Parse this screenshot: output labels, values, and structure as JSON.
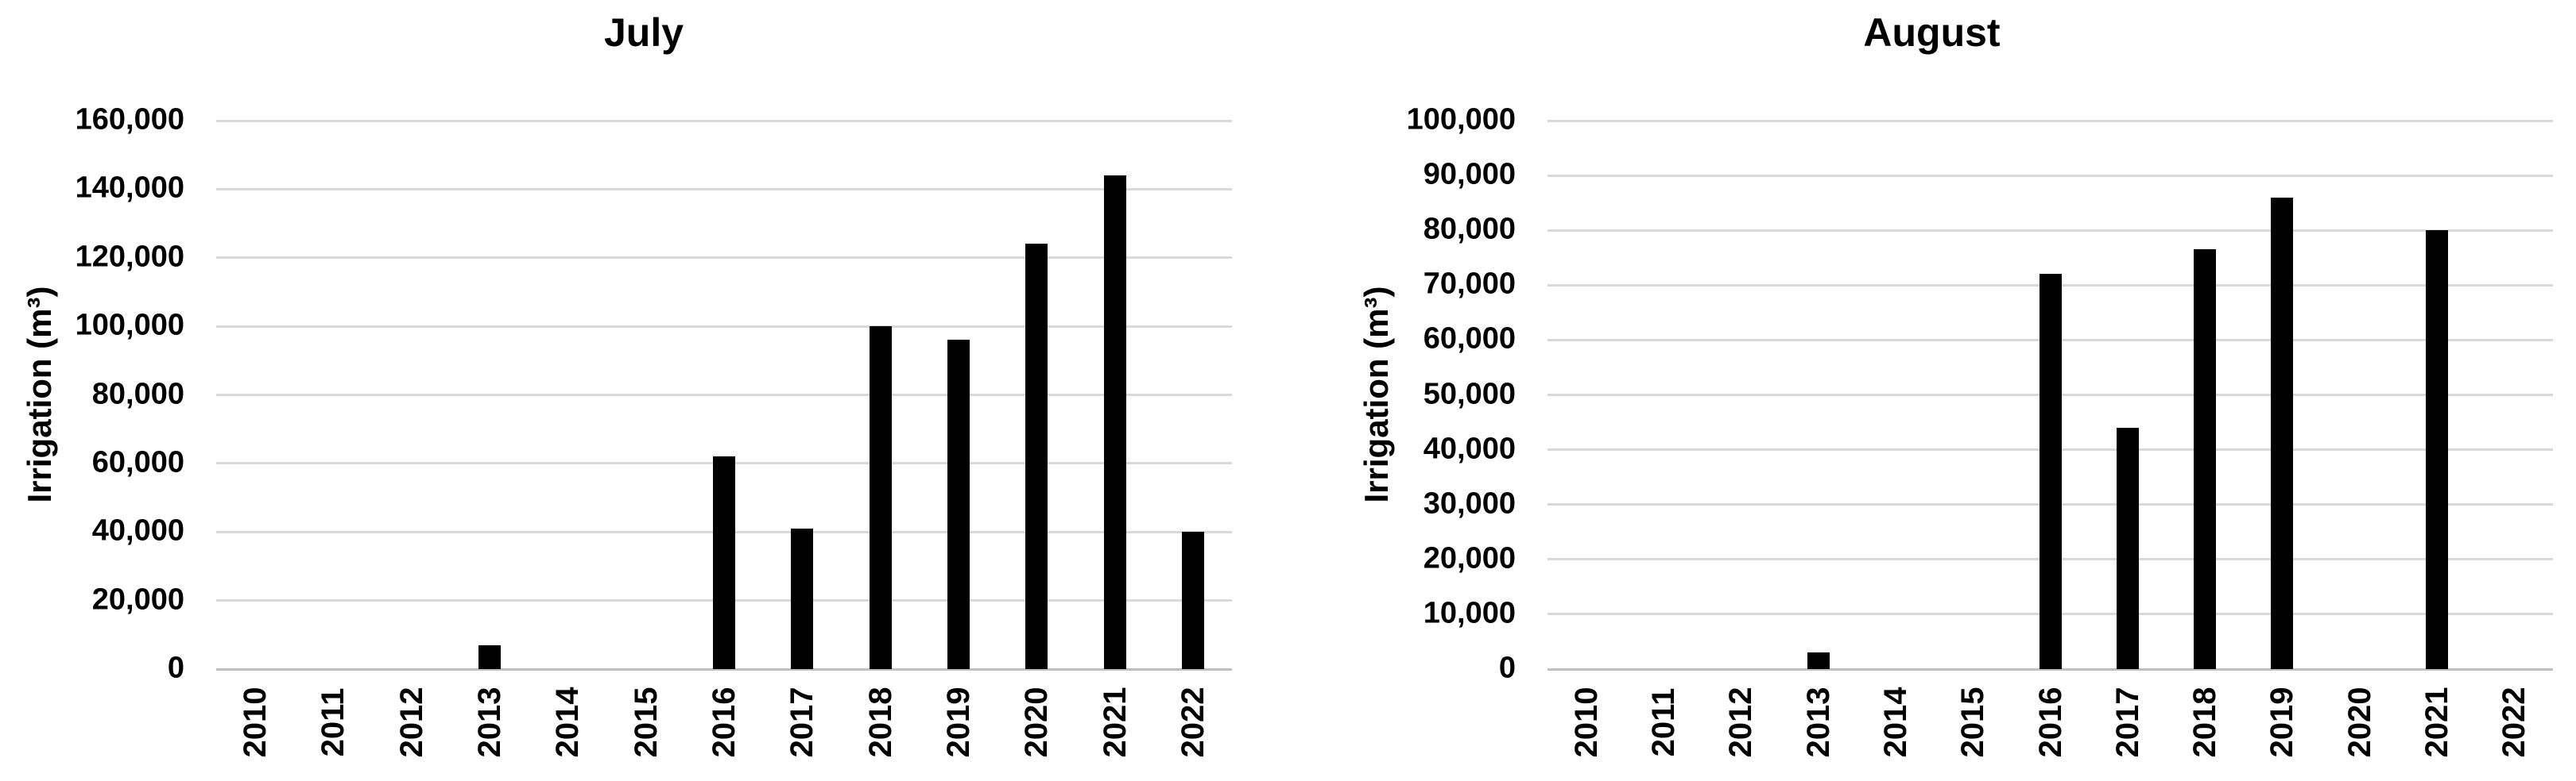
{
  "chart_data": [
    {
      "type": "bar",
      "title": "July",
      "ylabel": "Irrigation (m³)",
      "xlabel": "",
      "categories": [
        "2010",
        "2011",
        "2012",
        "2013",
        "2014",
        "2015",
        "2016",
        "2017",
        "2018",
        "2019",
        "2020",
        "2021",
        "2022"
      ],
      "values": [
        0,
        0,
        0,
        7000,
        0,
        0,
        62000,
        41000,
        100000,
        96000,
        124000,
        144000,
        40000
      ],
      "ylim": [
        0,
        160000
      ],
      "ystep": 20000,
      "y_tick_labels": [
        "0",
        "20,000",
        "40,000",
        "60,000",
        "80,000",
        "100,000",
        "120,000",
        "140,000",
        "160,000"
      ],
      "grid": true,
      "legend": false,
      "bar_color": "#000000",
      "gridline_color": "#d9d9d9",
      "axis_line_color": "#bfbfbf"
    },
    {
      "type": "bar",
      "title": "August",
      "ylabel": "Irrigation (m³)",
      "xlabel": "",
      "categories": [
        "2010",
        "2011",
        "2012",
        "2013",
        "2014",
        "2015",
        "2016",
        "2017",
        "2018",
        "2019",
        "2020",
        "2021",
        "2022"
      ],
      "values": [
        0,
        0,
        0,
        3000,
        0,
        0,
        72000,
        44000,
        76500,
        86000,
        0,
        80000,
        0
      ],
      "ylim": [
        0,
        100000
      ],
      "ystep": 10000,
      "y_tick_labels": [
        "0",
        "10,000",
        "20,000",
        "30,000",
        "40,000",
        "50,000",
        "60,000",
        "70,000",
        "80,000",
        "90,000",
        "100,000"
      ],
      "grid": true,
      "legend": false,
      "bar_color": "#000000",
      "gridline_color": "#d9d9d9",
      "axis_line_color": "#bfbfbf"
    }
  ]
}
